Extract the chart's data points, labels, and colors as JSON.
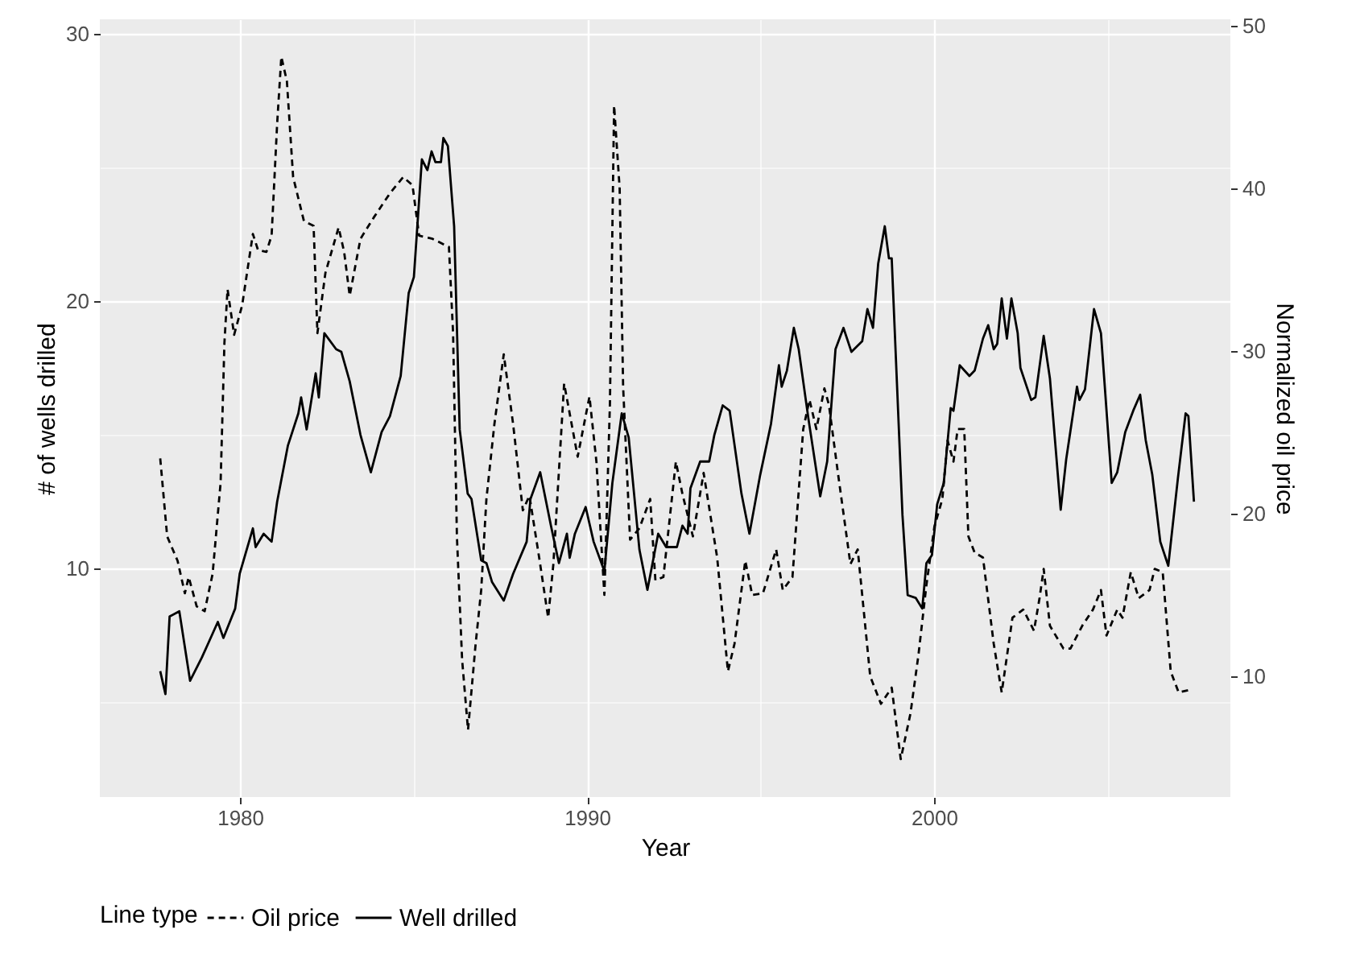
{
  "chart_data": {
    "type": "line",
    "xlabel": "Year",
    "ylabel": "# of wells drilled",
    "y2label": "Normalized oil price",
    "legend_title": "Line type",
    "legend": "bottom",
    "grid": true,
    "xlim": [
      1975.96,
      2008.54
    ],
    "xticks": [
      1980,
      {
        "value": 1985,
        "label": null
      },
      1990,
      {
        "value": 1995,
        "label": null
      },
      2000,
      {
        "value": 2005,
        "label": null
      }
    ],
    "ylim": [
      1.45,
      30.54
    ],
    "yticks": [
      {
        "value": 5,
        "label": null
      },
      10,
      {
        "value": 15,
        "label": null
      },
      20,
      {
        "value": 25,
        "label": null
      },
      30
    ],
    "y2lim": [
      2.57,
      50.4
    ],
    "y2ticks": [
      10,
      20,
      30,
      40,
      50
    ],
    "series": [
      {
        "name": "Oil price",
        "color": "#000000",
        "line_style": "dashed",
        "axis": "y2",
        "x": [
          1977.7,
          1977.9,
          1978.2,
          1978.41,
          1978.52,
          1978.75,
          1978.98,
          1979.21,
          1979.44,
          1979.55,
          1979.64,
          1979.83,
          1980.06,
          1980.37,
          1980.52,
          1980.76,
          1980.91,
          1981.07,
          1981.19,
          1981.35,
          1981.53,
          1981.84,
          1982.12,
          1982.23,
          1982.46,
          1982.84,
          1983.0,
          1983.16,
          1983.47,
          1983.85,
          1984.32,
          1984.7,
          1984.97,
          1985.16,
          1985.55,
          1986.02,
          1986.14,
          1986.25,
          1986.4,
          1986.57,
          1986.79,
          1986.95,
          1987.1,
          1987.33,
          1987.6,
          1987.87,
          1988.15,
          1988.34,
          1988.62,
          1988.88,
          1989.03,
          1989.34,
          1989.73,
          1990.07,
          1990.27,
          1990.5,
          1990.66,
          1990.78,
          1990.94,
          1991.04,
          1991.24,
          1991.51,
          1991.82,
          1991.97,
          1992.2,
          1992.56,
          1992.75,
          1993.05,
          1993.36,
          1993.75,
          1994.06,
          1994.25,
          1994.56,
          1994.76,
          1995.07,
          1995.45,
          1995.64,
          1995.92,
          1996.23,
          1996.41,
          1996.61,
          1996.84,
          1996.97,
          1997.23,
          1997.59,
          1997.8,
          1998.16,
          1998.47,
          1998.78,
          1999.04,
          1999.32,
          1999.55,
          1999.78,
          2000.01,
          2000.24,
          2000.39,
          2000.56,
          2000.68,
          2000.87,
          2000.99,
          2001.17,
          2001.41,
          2001.72,
          2001.95,
          2002.26,
          2002.57,
          2002.88,
          2003.04,
          2003.16,
          2003.34,
          2003.73,
          2003.93,
          2004.27,
          2004.58,
          2004.81,
          2004.97,
          2005.28,
          2005.43,
          2005.67,
          2005.9,
          2006.21,
          2006.36,
          2006.59,
          2006.82,
          2007.05,
          2007.43
        ],
        "values": [
          23.4,
          18.6,
          17.1,
          15.1,
          16.1,
          14.3,
          14.0,
          16.3,
          21.9,
          30.5,
          33.8,
          31.0,
          32.8,
          37.2,
          36.2,
          36.1,
          37.1,
          44.0,
          48.1,
          46.6,
          40.7,
          38.0,
          37.7,
          31.1,
          34.8,
          37.6,
          36.1,
          33.4,
          36.9,
          38.2,
          39.7,
          40.7,
          40.2,
          37.1,
          36.9,
          36.4,
          31.1,
          18.6,
          11.0,
          6.7,
          12.0,
          15.3,
          20.9,
          25.5,
          29.8,
          25.5,
          20.2,
          21.1,
          17.3,
          13.6,
          16.9,
          28.0,
          23.5,
          27.2,
          23.2,
          15.0,
          26.8,
          45.1,
          40.0,
          27.8,
          18.4,
          19.1,
          20.9,
          15.9,
          16.1,
          23.2,
          21.2,
          18.6,
          22.5,
          17.3,
          10.3,
          12.0,
          17.1,
          15.0,
          15.1,
          17.8,
          15.3,
          16.1,
          25.2,
          27.0,
          25.2,
          27.7,
          26.7,
          22.5,
          16.9,
          17.8,
          10.0,
          8.3,
          9.3,
          4.9,
          7.7,
          11.3,
          15.6,
          19.2,
          20.9,
          24.5,
          23.2,
          25.2,
          25.2,
          18.6,
          17.6,
          17.3,
          12.0,
          9.0,
          13.6,
          14.1,
          12.8,
          14.8,
          16.6,
          13.1,
          11.7,
          11.7,
          13.1,
          14.1,
          15.3,
          12.5,
          14.1,
          13.6,
          16.4,
          14.8,
          15.3,
          16.6,
          16.4,
          10.3,
          9.0,
          9.2
        ]
      },
      {
        "name": "Well drilled",
        "color": "#000000",
        "line_style": "solid",
        "axis": "y",
        "x": [
          1977.7,
          1977.85,
          1977.97,
          1978.25,
          1978.56,
          1978.9,
          1979.36,
          1979.52,
          1979.86,
          1979.99,
          1980.37,
          1980.45,
          1980.68,
          1980.91,
          1981.07,
          1981.38,
          1981.68,
          1981.76,
          1981.92,
          1982.18,
          1982.27,
          1982.43,
          1982.77,
          1982.92,
          1983.16,
          1983.47,
          1983.77,
          1984.08,
          1984.32,
          1984.63,
          1984.86,
          1985.01,
          1985.24,
          1985.4,
          1985.52,
          1985.63,
          1985.79,
          1985.86,
          1985.99,
          1986.17,
          1986.33,
          1986.56,
          1986.67,
          1986.95,
          1987.1,
          1987.26,
          1987.6,
          1987.87,
          1988.26,
          1988.37,
          1988.65,
          1988.96,
          1989.19,
          1989.42,
          1989.5,
          1989.65,
          1989.96,
          1990.19,
          1990.5,
          1990.73,
          1991.0,
          1991.2,
          1991.51,
          1991.74,
          1992.05,
          1992.28,
          1992.59,
          1992.75,
          1992.9,
          1992.98,
          1993.26,
          1993.52,
          1993.67,
          1993.91,
          1994.11,
          1994.45,
          1994.68,
          1994.99,
          1995.3,
          1995.53,
          1995.61,
          1995.76,
          1995.96,
          1996.1,
          1996.38,
          1996.72,
          1996.92,
          1997.16,
          1997.39,
          1997.62,
          1997.93,
          1998.08,
          1998.24,
          1998.39,
          1998.58,
          1998.7,
          1998.78,
          1999.09,
          1999.24,
          1999.47,
          1999.66,
          1999.78,
          1999.94,
          2000.09,
          2000.28,
          2000.48,
          2000.56,
          2000.74,
          2001.02,
          2001.17,
          2001.41,
          2001.56,
          2001.72,
          2001.82,
          2001.95,
          2002.1,
          2002.23,
          2002.41,
          2002.49,
          2002.8,
          2002.92,
          2003.16,
          2003.34,
          2003.65,
          2003.81,
          2003.96,
          2004.12,
          2004.19,
          2004.35,
          2004.61,
          2004.81,
          2005.12,
          2005.28,
          2005.51,
          2005.74,
          2005.94,
          2006.1,
          2006.29,
          2006.52,
          2006.75,
          2007.03,
          2007.25,
          2007.33,
          2007.49
        ],
        "values": [
          6.16,
          5.3,
          8.2,
          8.4,
          5.8,
          6.67,
          8.0,
          7.4,
          8.5,
          9.8,
          11.5,
          10.8,
          11.3,
          11.0,
          12.5,
          14.6,
          15.8,
          16.4,
          15.2,
          17.3,
          16.4,
          18.8,
          18.2,
          18.1,
          17.0,
          15.0,
          13.6,
          15.1,
          15.7,
          17.2,
          20.3,
          20.9,
          25.3,
          24.9,
          25.6,
          25.2,
          25.2,
          26.1,
          25.8,
          22.8,
          15.2,
          12.8,
          12.6,
          10.3,
          10.2,
          9.5,
          8.8,
          9.8,
          11.0,
          12.6,
          13.6,
          11.6,
          10.2,
          11.3,
          10.4,
          11.3,
          12.3,
          11.0,
          9.9,
          13.2,
          15.8,
          14.9,
          10.7,
          9.2,
          11.3,
          10.8,
          10.8,
          11.6,
          11.3,
          13.0,
          14.0,
          14.0,
          15.0,
          16.1,
          15.9,
          12.8,
          11.3,
          13.5,
          15.4,
          17.6,
          16.8,
          17.4,
          19.0,
          18.2,
          15.6,
          12.7,
          14.0,
          18.2,
          19.0,
          18.1,
          18.5,
          19.7,
          19.0,
          21.4,
          22.8,
          21.6,
          21.6,
          12.0,
          9.0,
          8.9,
          8.5,
          10.2,
          10.5,
          12.4,
          13.2,
          16.0,
          15.9,
          17.6,
          17.2,
          17.4,
          18.6,
          19.1,
          18.2,
          18.4,
          20.1,
          18.6,
          20.1,
          18.8,
          17.5,
          16.3,
          16.4,
          18.7,
          17.1,
          12.2,
          14.1,
          15.4,
          16.8,
          16.3,
          16.7,
          19.7,
          18.8,
          13.2,
          13.6,
          15.1,
          15.9,
          16.5,
          14.8,
          13.5,
          11.0,
          10.1,
          13.4,
          15.8,
          15.7,
          12.5
        ]
      }
    ]
  }
}
